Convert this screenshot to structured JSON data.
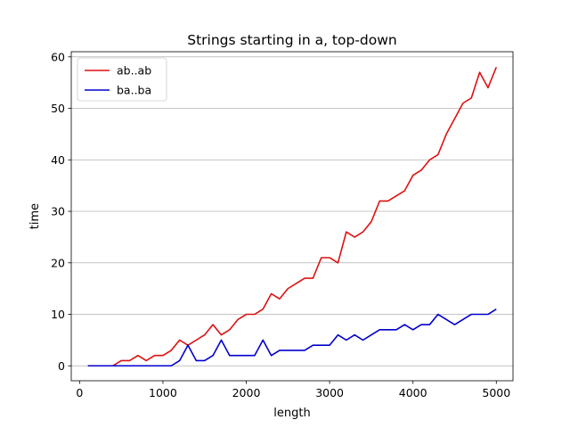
{
  "chart_data": {
    "type": "line",
    "title": "Strings starting in a, top-down",
    "xlabel": "length",
    "ylabel": "time",
    "xlim": [
      -100,
      5200
    ],
    "ylim": [
      -2.9,
      61
    ],
    "xticks": [
      0,
      1000,
      2000,
      3000,
      4000,
      5000
    ],
    "yticks": [
      0,
      10,
      20,
      30,
      40,
      50,
      60
    ],
    "grid": "y",
    "legend": "top-left",
    "x": [
      100,
      200,
      300,
      400,
      500,
      600,
      700,
      800,
      900,
      1000,
      1100,
      1200,
      1300,
      1400,
      1500,
      1600,
      1700,
      1800,
      1900,
      2000,
      2100,
      2200,
      2300,
      2400,
      2500,
      2600,
      2700,
      2800,
      2900,
      3000,
      3100,
      3200,
      3300,
      3400,
      3500,
      3600,
      3700,
      3800,
      3900,
      4000,
      4100,
      4200,
      4300,
      4400,
      4500,
      4600,
      4700,
      4800,
      4900,
      5000
    ],
    "series": [
      {
        "name": "ab..ab",
        "color": "#dd1111",
        "values": [
          0,
          0,
          0,
          0,
          1,
          1,
          2,
          1,
          2,
          2,
          3,
          5,
          4,
          5,
          6,
          8,
          6,
          7,
          9,
          10,
          10,
          11,
          14,
          13,
          15,
          16,
          17,
          17,
          21,
          21,
          20,
          26,
          25,
          26,
          28,
          32,
          32,
          33,
          34,
          37,
          38,
          40,
          41,
          45,
          48,
          51,
          52,
          57,
          54,
          58
        ]
      },
      {
        "name": "ba..ba",
        "color": "#0000cc",
        "values": [
          0,
          0,
          0,
          0,
          0,
          0,
          0,
          0,
          0,
          0,
          0,
          1,
          4,
          1,
          1,
          2,
          5,
          2,
          2,
          2,
          2,
          5,
          2,
          3,
          3,
          3,
          3,
          4,
          4,
          4,
          6,
          5,
          6,
          5,
          6,
          7,
          7,
          7,
          8,
          7,
          8,
          8,
          10,
          9,
          8,
          9,
          10,
          10,
          10,
          11
        ]
      }
    ]
  }
}
